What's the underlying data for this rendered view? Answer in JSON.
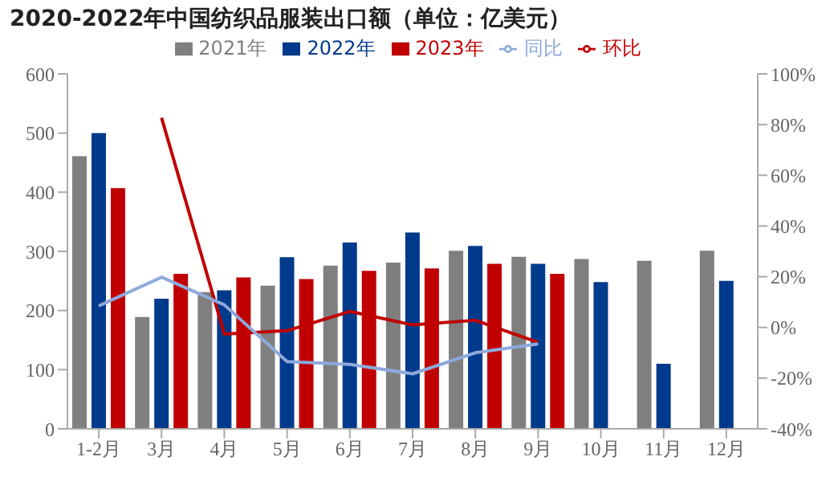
{
  "chart_data": {
    "type": "bar",
    "title": "2020-2022年中国纺织品服装出口额（单位：亿美元）",
    "categories": [
      "1-2月",
      "3月",
      "4月",
      "5月",
      "6月",
      "7月",
      "8月",
      "9月",
      "10月",
      "11月",
      "12月"
    ],
    "series": [
      {
        "name": "2021年",
        "color": "#7f7f7f",
        "values": [
          461,
          189,
          231,
          242,
          276,
          281,
          301,
          291,
          287,
          284,
          301
        ]
      },
      {
        "name": "2022年",
        "color": "#003a8c",
        "values": [
          500,
          220,
          234,
          290,
          315,
          332,
          309,
          279,
          248,
          110,
          250
        ]
      },
      {
        "name": "2023年",
        "color": "#c00000",
        "values": [
          407,
          262,
          256,
          253,
          267,
          271,
          279,
          262,
          null,
          null,
          null
        ]
      },
      {
        "name": "环比",
        "type": "line",
        "axis": "y2",
        "color": "#c00000",
        "values": [
          null,
          82.7,
          -2.6,
          -1.3,
          6.3,
          1,
          2.8,
          -5.9,
          null,
          null,
          null
        ]
      },
      {
        "name": "同比",
        "type": "line",
        "axis": "y2",
        "color": "#8ea9db",
        "values": [
          8.5,
          19.8,
          8.9,
          -13.5,
          -14.6,
          -18.3,
          -10,
          -6.5,
          null,
          null,
          null
        ]
      }
    ],
    "ylim": [
      0,
      600
    ],
    "yticks": [
      0,
      100,
      200,
      300,
      400,
      500,
      600
    ],
    "y2lim": [
      -40,
      100
    ],
    "y2ticks": [
      {
        "value": -40,
        "label": "-40%"
      },
      {
        "value": -20,
        "label": "-20%"
      },
      {
        "value": 0,
        "label": "0%"
      },
      {
        "value": 20,
        "label": "20%"
      },
      {
        "value": 40,
        "label": "40%"
      },
      {
        "value": 60,
        "label": "60%"
      },
      {
        "value": 80,
        "label": "80%"
      },
      {
        "value": 100,
        "label": "100%"
      }
    ],
    "legend": "top",
    "marker": "none",
    "line_style": "solid",
    "grid": false
  }
}
